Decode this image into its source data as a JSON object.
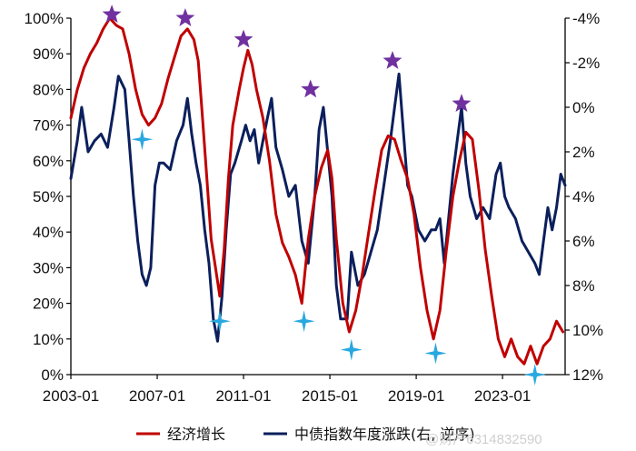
{
  "chart_data": {
    "type": "line",
    "title": "",
    "xlabel": "",
    "x_ticks": [
      "2003-01",
      "2007-01",
      "2011-01",
      "2015-01",
      "2019-01",
      "2023-01"
    ],
    "x_range": [
      2003.0,
      2025.9
    ],
    "y_left": {
      "range": [
        0,
        100
      ],
      "unit": "%",
      "ticks": [
        0,
        10,
        20,
        30,
        40,
        50,
        60,
        70,
        80,
        90,
        100
      ],
      "tick_labels": [
        "0%",
        "10%",
        "20%",
        "30%",
        "40%",
        "50%",
        "60%",
        "70%",
        "80%",
        "90%",
        "100%"
      ]
    },
    "y_right": {
      "range": [
        12,
        -4
      ],
      "reversed": true,
      "unit": "%",
      "ticks": [
        -4,
        -2,
        0,
        2,
        4,
        6,
        8,
        10,
        12
      ],
      "tick_labels": [
        "-4%",
        "-2%",
        "0%",
        "2%",
        "4%",
        "6%",
        "8%",
        "10%",
        "12%"
      ]
    },
    "grid": false,
    "legend_position": "bottom",
    "series": [
      {
        "name": "经济增长",
        "axis": "left",
        "color": "#c00000",
        "points": [
          [
            2003.0,
            72
          ],
          [
            2003.3,
            80
          ],
          [
            2003.6,
            86
          ],
          [
            2003.9,
            90
          ],
          [
            2004.2,
            93
          ],
          [
            2004.5,
            97
          ],
          [
            2004.8,
            100
          ],
          [
            2005.1,
            98
          ],
          [
            2005.4,
            97
          ],
          [
            2005.7,
            90
          ],
          [
            2006.0,
            80
          ],
          [
            2006.3,
            73
          ],
          [
            2006.6,
            70
          ],
          [
            2006.9,
            72
          ],
          [
            2007.2,
            76
          ],
          [
            2007.5,
            83
          ],
          [
            2007.8,
            89
          ],
          [
            2008.1,
            95
          ],
          [
            2008.4,
            97
          ],
          [
            2008.7,
            94
          ],
          [
            2008.9,
            88
          ],
          [
            2009.1,
            72
          ],
          [
            2009.3,
            55
          ],
          [
            2009.5,
            38
          ],
          [
            2009.7,
            30
          ],
          [
            2009.9,
            22
          ],
          [
            2010.1,
            35
          ],
          [
            2010.3,
            55
          ],
          [
            2010.5,
            70
          ],
          [
            2010.8,
            80
          ],
          [
            2011.0,
            86
          ],
          [
            2011.2,
            91
          ],
          [
            2011.4,
            87
          ],
          [
            2011.6,
            80
          ],
          [
            2011.9,
            72
          ],
          [
            2012.2,
            60
          ],
          [
            2012.5,
            45
          ],
          [
            2012.8,
            37
          ],
          [
            2013.1,
            33
          ],
          [
            2013.4,
            28
          ],
          [
            2013.7,
            20
          ],
          [
            2014.0,
            38
          ],
          [
            2014.3,
            50
          ],
          [
            2014.6,
            58
          ],
          [
            2014.9,
            63
          ],
          [
            2015.1,
            55
          ],
          [
            2015.3,
            38
          ],
          [
            2015.6,
            20
          ],
          [
            2015.9,
            12
          ],
          [
            2016.2,
            18
          ],
          [
            2016.5,
            28
          ],
          [
            2016.8,
            40
          ],
          [
            2017.1,
            52
          ],
          [
            2017.4,
            63
          ],
          [
            2017.7,
            67
          ],
          [
            2018.0,
            66
          ],
          [
            2018.3,
            60
          ],
          [
            2018.6,
            55
          ],
          [
            2018.9,
            45
          ],
          [
            2019.2,
            30
          ],
          [
            2019.5,
            18
          ],
          [
            2019.8,
            10
          ],
          [
            2020.1,
            18
          ],
          [
            2020.4,
            35
          ],
          [
            2020.7,
            50
          ],
          [
            2021.0,
            60
          ],
          [
            2021.3,
            68
          ],
          [
            2021.6,
            66
          ],
          [
            2021.9,
            52
          ],
          [
            2022.2,
            35
          ],
          [
            2022.5,
            22
          ],
          [
            2022.8,
            10
          ],
          [
            2023.1,
            5
          ],
          [
            2023.4,
            10
          ],
          [
            2023.7,
            5
          ],
          [
            2024.0,
            3
          ],
          [
            2024.3,
            8
          ],
          [
            2024.6,
            3
          ],
          [
            2024.9,
            8
          ],
          [
            2025.2,
            10
          ],
          [
            2025.5,
            15
          ],
          [
            2025.8,
            12
          ]
        ]
      },
      {
        "name": "中债指数年度涨跌(右, 逆序)",
        "axis": "right",
        "color": "#0b1f5c",
        "points": [
          [
            2003.0,
            3.2
          ],
          [
            2003.3,
            1.5
          ],
          [
            2003.5,
            0.0
          ],
          [
            2003.8,
            2.0
          ],
          [
            2004.1,
            1.5
          ],
          [
            2004.4,
            1.2
          ],
          [
            2004.7,
            1.8
          ],
          [
            2005.0,
            0.0
          ],
          [
            2005.2,
            -1.4
          ],
          [
            2005.5,
            -0.8
          ],
          [
            2005.7,
            1.5
          ],
          [
            2005.9,
            4.0
          ],
          [
            2006.1,
            6.0
          ],
          [
            2006.3,
            7.5
          ],
          [
            2006.5,
            8.0
          ],
          [
            2006.7,
            7.2
          ],
          [
            2006.9,
            3.5
          ],
          [
            2007.1,
            2.5
          ],
          [
            2007.3,
            2.5
          ],
          [
            2007.6,
            2.8
          ],
          [
            2007.9,
            1.5
          ],
          [
            2008.2,
            0.8
          ],
          [
            2008.4,
            -0.4
          ],
          [
            2008.6,
            1.2
          ],
          [
            2008.8,
            2.5
          ],
          [
            2009.0,
            3.5
          ],
          [
            2009.2,
            5.5
          ],
          [
            2009.4,
            7.0
          ],
          [
            2009.6,
            9.5
          ],
          [
            2009.8,
            10.5
          ],
          [
            2010.0,
            8.5
          ],
          [
            2010.2,
            5.5
          ],
          [
            2010.4,
            3.0
          ],
          [
            2010.6,
            2.5
          ],
          [
            2010.9,
            1.5
          ],
          [
            2011.1,
            0.8
          ],
          [
            2011.3,
            1.5
          ],
          [
            2011.5,
            1.0
          ],
          [
            2011.7,
            2.5
          ],
          [
            2011.9,
            1.5
          ],
          [
            2012.1,
            0.5
          ],
          [
            2012.3,
            -0.4
          ],
          [
            2012.5,
            1.8
          ],
          [
            2012.8,
            2.8
          ],
          [
            2013.1,
            4.0
          ],
          [
            2013.4,
            3.5
          ],
          [
            2013.7,
            6.0
          ],
          [
            2014.0,
            7.0
          ],
          [
            2014.3,
            4.0
          ],
          [
            2014.5,
            1.0
          ],
          [
            2014.7,
            0.0
          ],
          [
            2014.9,
            2.0
          ],
          [
            2015.1,
            4.0
          ],
          [
            2015.3,
            8.0
          ],
          [
            2015.5,
            9.5
          ],
          [
            2015.8,
            9.5
          ],
          [
            2016.0,
            6.5
          ],
          [
            2016.3,
            8.0
          ],
          [
            2016.6,
            7.5
          ],
          [
            2016.9,
            6.5
          ],
          [
            2017.2,
            5.5
          ],
          [
            2017.5,
            3.5
          ],
          [
            2017.8,
            1.5
          ],
          [
            2018.0,
            0.0
          ],
          [
            2018.2,
            -1.5
          ],
          [
            2018.4,
            1.0
          ],
          [
            2018.6,
            3.5
          ],
          [
            2018.8,
            4.0
          ],
          [
            2019.1,
            5.5
          ],
          [
            2019.4,
            6.0
          ],
          [
            2019.7,
            5.5
          ],
          [
            2019.9,
            5.5
          ],
          [
            2020.1,
            5.0
          ],
          [
            2020.3,
            7.0
          ],
          [
            2020.5,
            5.0
          ],
          [
            2020.7,
            3.0
          ],
          [
            2020.9,
            1.5
          ],
          [
            2021.1,
            0.0
          ],
          [
            2021.3,
            2.5
          ],
          [
            2021.5,
            4.0
          ],
          [
            2021.8,
            5.0
          ],
          [
            2022.1,
            4.5
          ],
          [
            2022.4,
            5.0
          ],
          [
            2022.7,
            3.0
          ],
          [
            2022.9,
            2.5
          ],
          [
            2023.1,
            4.0
          ],
          [
            2023.3,
            4.5
          ],
          [
            2023.6,
            5.0
          ],
          [
            2023.9,
            6.0
          ],
          [
            2024.2,
            6.5
          ],
          [
            2024.5,
            7.0
          ],
          [
            2024.7,
            7.5
          ],
          [
            2024.9,
            6.0
          ],
          [
            2025.1,
            4.5
          ],
          [
            2025.3,
            5.5
          ],
          [
            2025.5,
            4.5
          ],
          [
            2025.7,
            3.0
          ],
          [
            2025.9,
            3.5
          ]
        ]
      }
    ],
    "markers": {
      "peaks": {
        "shape": "star",
        "color": "#7030a0",
        "points": [
          [
            2004.9,
            101
          ],
          [
            2008.3,
            100
          ],
          [
            2011.0,
            94
          ],
          [
            2014.1,
            80
          ],
          [
            2017.9,
            88
          ],
          [
            2021.1,
            76
          ]
        ]
      },
      "troughs": {
        "shape": "four-point-star",
        "color": "#29a8e0",
        "points": [
          [
            2006.3,
            66
          ],
          [
            2009.9,
            15
          ],
          [
            2013.8,
            15
          ],
          [
            2016.0,
            7
          ],
          [
            2019.9,
            6
          ],
          [
            2024.5,
            0
          ]
        ]
      }
    }
  },
  "watermark": "@财产6314832590"
}
